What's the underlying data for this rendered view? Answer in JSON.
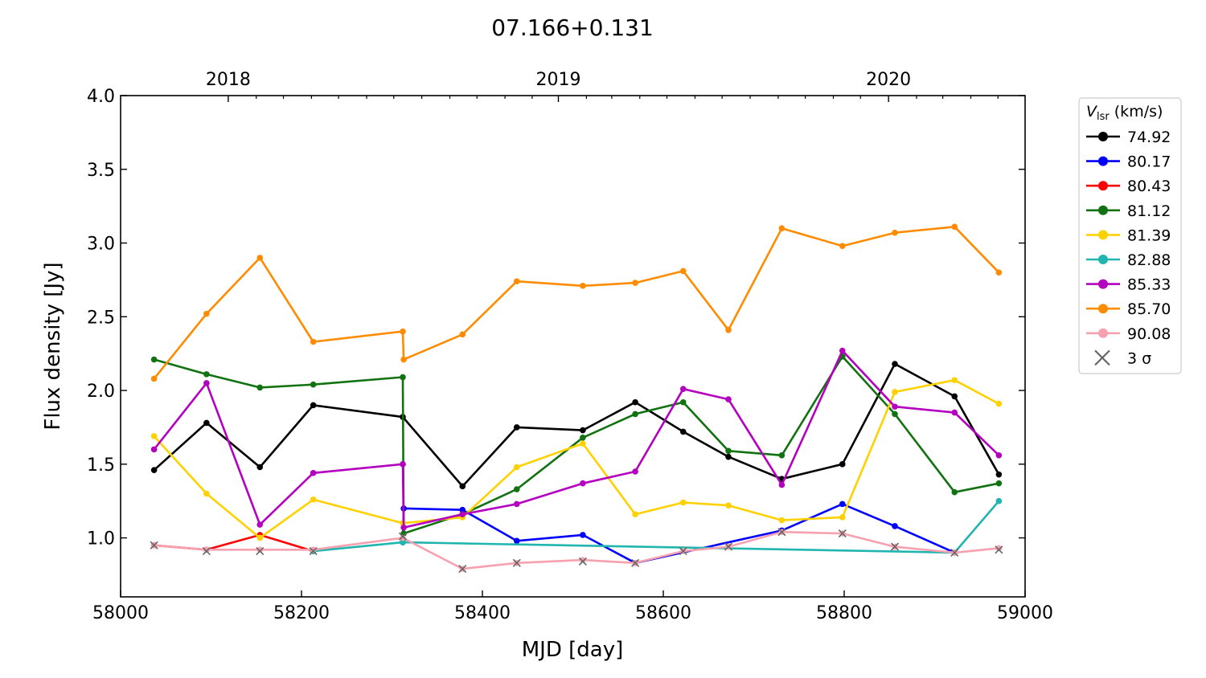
{
  "chart_data": {
    "type": "line",
    "title": "07.166+0.131",
    "xlabel": "MJD [day]",
    "ylabel": "Flux density [Jy]",
    "xlim": [
      58000,
      59000
    ],
    "ylim": [
      0.6,
      4.0
    ],
    "xticks": [
      58000,
      58200,
      58400,
      58600,
      58800,
      59000
    ],
    "xtick_labels": [
      "58000",
      "58200",
      "58400",
      "58600",
      "58800",
      "59000"
    ],
    "yticks": [
      1.0,
      1.5,
      2.0,
      2.5,
      3.0,
      3.5,
      4.0
    ],
    "ytick_labels": [
      "1.0",
      "1.5",
      "2.0",
      "2.5",
      "3.0",
      "3.5",
      "4.0"
    ],
    "top_axis": {
      "label_ticks": [
        58119,
        58484,
        58849
      ],
      "labels": [
        "2018",
        "2019",
        "2020"
      ],
      "minor_ticks": [
        58150,
        58180,
        58211,
        58241,
        58272,
        58302,
        58333,
        58364,
        58394,
        58425,
        58455,
        58515,
        58543,
        58574,
        58604,
        58635,
        58665,
        58696,
        58727,
        58757,
        58788,
        58818,
        58880,
        58909,
        58940,
        58970
      ]
    },
    "grid": false,
    "legend": {
      "title_main": "V",
      "title_sub": "lsr",
      "title_unit": " (km/s)",
      "placement": "outside-right",
      "sigma_label": "3 σ"
    },
    "x": [
      58037,
      58095,
      58154,
      58213,
      58312,
      58378,
      58438,
      58511,
      58569,
      58622,
      58672,
      58731,
      58798,
      58856,
      58922,
      58971
    ],
    "series": [
      {
        "name": "74.92",
        "color": "#000000",
        "x": [
          58037,
          58095,
          58154,
          58213,
          58312,
          58378,
          58438,
          58511,
          58569,
          58622,
          58672,
          58731,
          58798,
          58856,
          58922,
          58971
        ],
        "values": [
          1.46,
          1.78,
          1.48,
          1.9,
          1.82,
          1.35,
          1.75,
          1.73,
          1.92,
          1.72,
          1.55,
          1.4,
          1.5,
          2.18,
          1.96,
          1.43
        ]
      },
      {
        "name": "80.17",
        "color": "#0000ff",
        "x": [
          58312,
          58313,
          58378,
          58438,
          58511,
          58569,
          58731,
          58798,
          58856,
          58922
        ],
        "values": [
          0.97,
          1.2,
          1.19,
          0.98,
          1.02,
          0.83,
          1.05,
          1.23,
          1.08,
          0.9
        ]
      },
      {
        "name": "80.43",
        "color": "#ff0000",
        "x": [
          58037,
          58095,
          58154,
          58213
        ],
        "values": [
          0.95,
          0.92,
          1.02,
          0.91
        ]
      },
      {
        "name": "81.12",
        "color": "#127212",
        "x": [
          58037,
          58095,
          58154,
          58213,
          58312,
          58313,
          58378,
          58438,
          58511,
          58569,
          58622,
          58672,
          58731,
          58798,
          58856,
          58922,
          58971
        ],
        "values": [
          2.21,
          2.11,
          2.02,
          2.04,
          2.09,
          1.03,
          1.16,
          1.33,
          1.68,
          1.84,
          1.92,
          1.59,
          1.56,
          2.23,
          1.84,
          1.31,
          1.37
        ]
      },
      {
        "name": "81.39",
        "color": "#ffd100",
        "x": [
          58037,
          58095,
          58154,
          58213,
          58312,
          58378,
          58438,
          58511,
          58569,
          58622,
          58672,
          58731,
          58798,
          58856,
          58922,
          58971
        ],
        "values": [
          1.69,
          1.3,
          1.0,
          1.26,
          1.1,
          1.14,
          1.48,
          1.64,
          1.16,
          1.24,
          1.22,
          1.12,
          1.14,
          1.99,
          2.07,
          1.91
        ]
      },
      {
        "name": "82.88",
        "color": "#21b5b0",
        "x": [
          58213,
          58312,
          58922,
          58971
        ],
        "values": [
          0.91,
          0.97,
          0.9,
          1.25
        ]
      },
      {
        "name": "85.33",
        "color": "#b400bf",
        "x": [
          58037,
          58095,
          58154,
          58213,
          58312,
          58313,
          58378,
          58438,
          58511,
          58569,
          58622,
          58672,
          58731,
          58798,
          58856,
          58922,
          58971
        ],
        "values": [
          1.6,
          2.05,
          1.09,
          1.44,
          1.5,
          1.07,
          1.16,
          1.23,
          1.37,
          1.45,
          2.01,
          1.94,
          1.36,
          2.27,
          1.89,
          1.85,
          1.56
        ]
      },
      {
        "name": "85.70",
        "color": "#ff8c00",
        "x": [
          58037,
          58095,
          58154,
          58213,
          58312,
          58313,
          58378,
          58438,
          58511,
          58569,
          58622,
          58672,
          58731,
          58798,
          58856,
          58922,
          58971
        ],
        "values": [
          2.08,
          2.52,
          2.9,
          2.33,
          2.4,
          2.21,
          2.38,
          2.74,
          2.71,
          2.73,
          2.81,
          2.41,
          3.1,
          2.98,
          3.07,
          3.11,
          2.8
        ]
      },
      {
        "name": "90.08",
        "color": "#f7a1b0",
        "x": [
          58037,
          58095,
          58154,
          58213,
          58312,
          58378,
          58438,
          58511,
          58569,
          58622,
          58672,
          58731,
          58798,
          58856,
          58922,
          58971
        ],
        "values": [
          0.95,
          0.92,
          0.92,
          0.92,
          1.0,
          0.79,
          0.83,
          0.85,
          0.83,
          0.91,
          0.94,
          1.04,
          1.03,
          0.94,
          0.9,
          0.93
        ]
      }
    ],
    "sigma_3": {
      "x": [
        58037,
        58095,
        58154,
        58213,
        58312,
        58378,
        58438,
        58511,
        58569,
        58622,
        58672,
        58731,
        58798,
        58856,
        58922,
        58971
      ],
      "values": [
        0.95,
        0.91,
        0.91,
        0.91,
        1.01,
        0.79,
        0.83,
        0.84,
        0.83,
        0.91,
        0.94,
        1.04,
        1.03,
        0.94,
        0.9,
        0.92
      ],
      "color": "#666666"
    }
  }
}
